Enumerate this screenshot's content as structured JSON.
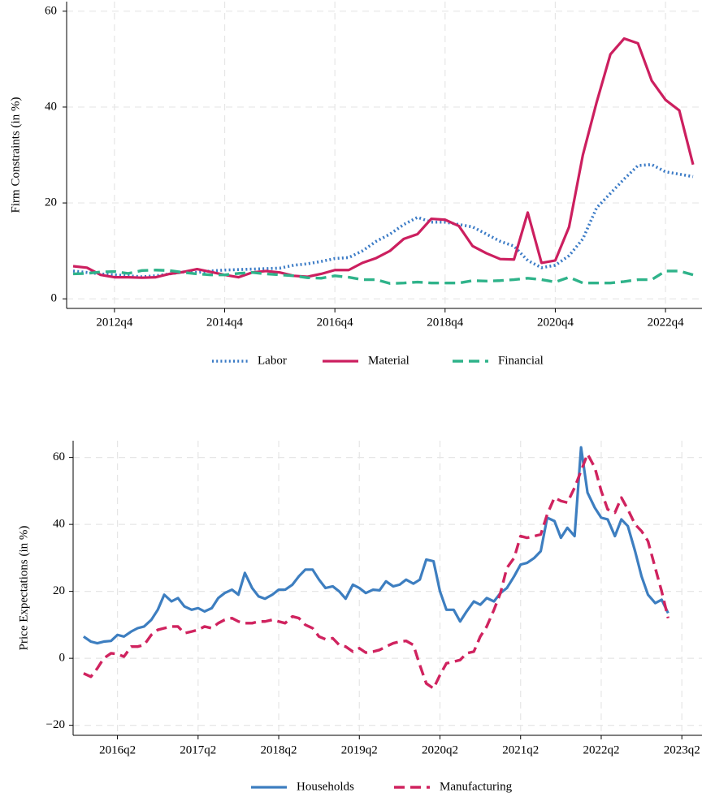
{
  "chart_data": [
    {
      "type": "line",
      "y_label": "Firm Constraints (in %)",
      "x": [
        "2012q1",
        "2012q2",
        "2012q3",
        "2012q4",
        "2013q1",
        "2013q2",
        "2013q3",
        "2013q4",
        "2014q1",
        "2014q2",
        "2014q3",
        "2014q4",
        "2015q1",
        "2015q2",
        "2015q3",
        "2015q4",
        "2016q1",
        "2016q2",
        "2016q3",
        "2016q4",
        "2017q1",
        "2017q2",
        "2017q3",
        "2017q4",
        "2018q1",
        "2018q2",
        "2018q3",
        "2018q4",
        "2019q1",
        "2019q2",
        "2019q3",
        "2019q4",
        "2020q1",
        "2020q2",
        "2020q3",
        "2020q4",
        "2021q1",
        "2021q2",
        "2021q3",
        "2021q4",
        "2022q1",
        "2022q2",
        "2022q3",
        "2022q4",
        "2023q1",
        "2023q2"
      ],
      "xlim": [
        "2012q1",
        "2023q2"
      ],
      "xticks": [
        "2012q4",
        "2014q4",
        "2016q4",
        "2018q4",
        "2020q4",
        "2022q4"
      ],
      "ylim": [
        -2,
        62
      ],
      "yticks": [
        0,
        20,
        40,
        60
      ],
      "grid": true,
      "legend": "bottom",
      "series": [
        {
          "name": "Labor",
          "color": "#3b7bc6",
          "style": "dotted",
          "values": [
            5.8,
            5.5,
            5.2,
            5.0,
            4.8,
            4.6,
            4.8,
            5.2,
            5.6,
            5.5,
            5.8,
            6.0,
            6.1,
            6.2,
            6.3,
            6.4,
            7.0,
            7.3,
            7.8,
            8.4,
            8.6,
            10.0,
            12.0,
            13.5,
            15.5,
            17.0,
            16.0,
            16.0,
            15.5,
            15.0,
            13.5,
            12.0,
            11.0,
            8.0,
            6.5,
            7.0,
            9.0,
            12.5,
            19.0,
            22.0,
            25.0,
            27.8,
            28.0,
            26.5,
            26.0,
            25.5
          ]
        },
        {
          "name": "Material",
          "color": "#cc1f5f",
          "style": "solid",
          "values": [
            6.8,
            6.5,
            5.0,
            4.5,
            4.5,
            4.4,
            4.5,
            5.2,
            5.6,
            6.2,
            5.6,
            5.0,
            4.5,
            5.5,
            5.8,
            5.5,
            4.8,
            4.6,
            5.2,
            6.0,
            6.0,
            7.5,
            8.5,
            10.0,
            12.5,
            13.5,
            16.7,
            16.5,
            15.2,
            11.0,
            9.5,
            8.3,
            8.2,
            18.0,
            7.5,
            8.0,
            15.0,
            30.0,
            41.0,
            51.0,
            54.3,
            53.3,
            45.5,
            41.5,
            39.3,
            28.0
          ]
        },
        {
          "name": "Financial",
          "color": "#2fb38a",
          "style": "dashed",
          "values": [
            5.2,
            5.3,
            5.6,
            5.7,
            5.3,
            5.9,
            6.0,
            5.9,
            5.5,
            5.2,
            5.0,
            5.0,
            5.3,
            5.5,
            5.2,
            5.0,
            4.8,
            4.4,
            4.3,
            4.8,
            4.5,
            4.0,
            4.0,
            3.2,
            3.3,
            3.5,
            3.3,
            3.3,
            3.3,
            3.8,
            3.7,
            3.8,
            4.0,
            4.3,
            4.0,
            3.5,
            4.5,
            3.3,
            3.3,
            3.3,
            3.6,
            4.0,
            4.0,
            5.8,
            5.8,
            5.0
          ]
        }
      ]
    },
    {
      "type": "line",
      "y_label": "Price Expectations (in %)",
      "x": [
        2015.83,
        2015.92,
        2016.0,
        2016.08,
        2016.17,
        2016.25,
        2016.33,
        2016.42,
        2016.5,
        2016.58,
        2016.67,
        2016.75,
        2016.83,
        2016.92,
        2017.0,
        2017.08,
        2017.17,
        2017.25,
        2017.33,
        2017.42,
        2017.5,
        2017.58,
        2017.67,
        2017.75,
        2017.83,
        2017.92,
        2018.0,
        2018.08,
        2018.17,
        2018.25,
        2018.33,
        2018.42,
        2018.5,
        2018.58,
        2018.67,
        2018.75,
        2018.83,
        2018.92,
        2019.0,
        2019.08,
        2019.17,
        2019.25,
        2019.33,
        2019.42,
        2019.5,
        2019.58,
        2019.67,
        2019.75,
        2019.83,
        2019.92,
        2020.0,
        2020.08,
        2020.17,
        2020.25,
        2020.33,
        2020.42,
        2020.5,
        2020.58,
        2020.67,
        2020.75,
        2020.83,
        2020.92,
        2021.0,
        2021.08,
        2021.17,
        2021.25,
        2021.33,
        2021.42,
        2021.5,
        2021.58,
        2021.67,
        2021.75,
        2021.83,
        2021.92,
        2022.0,
        2022.08,
        2022.17,
        2022.25,
        2022.33,
        2022.42,
        2022.5,
        2022.58,
        2022.67,
        2022.75,
        2022.83,
        2022.92,
        2023.0,
        2023.08
      ],
      "xlim": [
        2015.7,
        2023.5
      ],
      "xticks": [
        {
          "value": 2016.25,
          "label": "2016q2"
        },
        {
          "value": 2017.25,
          "label": "2017q2"
        },
        {
          "value": 2018.25,
          "label": "2018q2"
        },
        {
          "value": 2019.25,
          "label": "2019q2"
        },
        {
          "value": 2020.25,
          "label": "2020q2"
        },
        {
          "value": 2021.25,
          "label": "2021q2"
        },
        {
          "value": 2022.25,
          "label": "2022q2"
        },
        {
          "value": 2023.25,
          "label": "2023q2"
        }
      ],
      "ylim": [
        -23,
        65
      ],
      "yticks": [
        {
          "value": -20,
          "label": "−20"
        },
        0,
        20,
        40,
        60
      ],
      "grid": true,
      "legend": "bottom",
      "series": [
        {
          "name": "Households",
          "color": "#3d7ec0",
          "style": "solid",
          "values": [
            6.5,
            5,
            4.5,
            5,
            5.2,
            7,
            6.5,
            8,
            9,
            9.5,
            11.5,
            14.5,
            19,
            17,
            18,
            15.5,
            14.5,
            15,
            14,
            15,
            18,
            19.5,
            20.5,
            19,
            25.5,
            21,
            18.5,
            17.8,
            19,
            20.5,
            20.5,
            22,
            24.5,
            26.5,
            26.5,
            23.5,
            21,
            21.5,
            20,
            17.8,
            22,
            21,
            19.5,
            20.5,
            20.3,
            23,
            21.5,
            22,
            23.5,
            22.3,
            23.5,
            29.5,
            29,
            20,
            14.5,
            14.5,
            11,
            14,
            17,
            16,
            18,
            17,
            19.5,
            21,
            24.5,
            28,
            28.5,
            30,
            32,
            42,
            41,
            36,
            39,
            36.5,
            63,
            49.5,
            45,
            42,
            41.5,
            36.5,
            41.5,
            39.5,
            32,
            24.5,
            19,
            16.5,
            17.5,
            13.5
          ]
        },
        {
          "name": "Manufacturing",
          "color": "#d0235f",
          "style": "dashed",
          "values": [
            -4.5,
            -5.5,
            -3,
            0,
            1.5,
            1.3,
            0.5,
            3.5,
            3.5,
            4,
            7,
            8.5,
            9,
            9.5,
            9.5,
            7.5,
            8,
            8.5,
            9.5,
            9,
            10.5,
            11.5,
            12,
            11,
            10.5,
            10.5,
            11,
            11,
            11.5,
            11,
            10.5,
            12.5,
            12,
            10,
            9,
            6.5,
            5.7,
            6,
            4,
            3.5,
            2,
            3,
            1.7,
            2,
            2.5,
            3.5,
            4.5,
            5,
            5.2,
            4,
            -2,
            -7.5,
            -9,
            -5,
            -1.5,
            -1,
            -0.5,
            1.5,
            2,
            6.5,
            9.5,
            14.5,
            19.5,
            27,
            30,
            36.5,
            36,
            36.5,
            37,
            43,
            48,
            47,
            46.5,
            51,
            56,
            61,
            57,
            50,
            44.5,
            43.5,
            48,
            44.5,
            40,
            38,
            35,
            27,
            20,
            12
          ]
        }
      ]
    }
  ]
}
